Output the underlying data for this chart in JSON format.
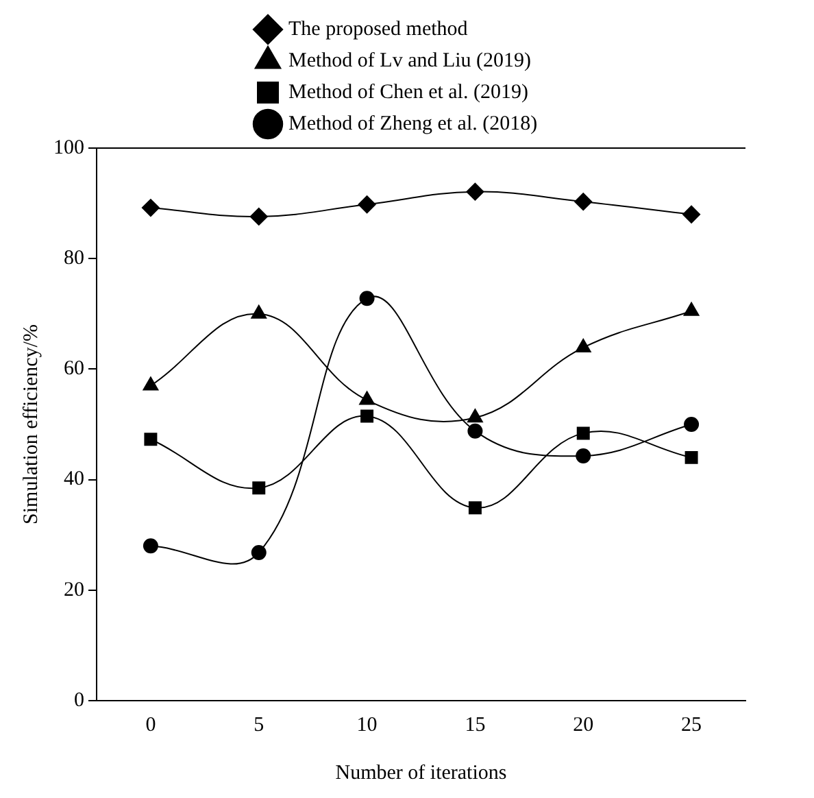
{
  "chart_data": {
    "type": "line",
    "xlabel": "Number of iterations",
    "ylabel": "Simulation efficiency/%",
    "categories": [
      "0",
      "5",
      "10",
      "15",
      "20",
      "25"
    ],
    "ylim": [
      0,
      100
    ],
    "yticks": [
      0,
      20,
      40,
      60,
      80,
      100
    ],
    "grid": false,
    "legend": "top",
    "line_style": "solid",
    "series": [
      {
        "name": "The proposed method",
        "color": "#000000",
        "marker": "diamond",
        "values": [
          89.2,
          87.6,
          89.8,
          92.1,
          90.3,
          88
        ]
      },
      {
        "name": "Method of Lv and Liu (2019)",
        "color": "#000000",
        "marker": "triangle",
        "values": [
          57,
          70,
          54.4,
          51.2,
          63.9,
          70.5
        ]
      },
      {
        "name": "Method of Chen et al. (2019)",
        "color": "#000000",
        "marker": "square",
        "values": [
          47.3,
          38.5,
          51.5,
          34.9,
          48.4,
          44
        ]
      },
      {
        "name": "Method of Zheng et al. (2018)",
        "color": "#000000",
        "marker": "circle",
        "values": [
          28,
          26.8,
          72.8,
          48.8,
          44.3,
          50
        ]
      }
    ]
  }
}
